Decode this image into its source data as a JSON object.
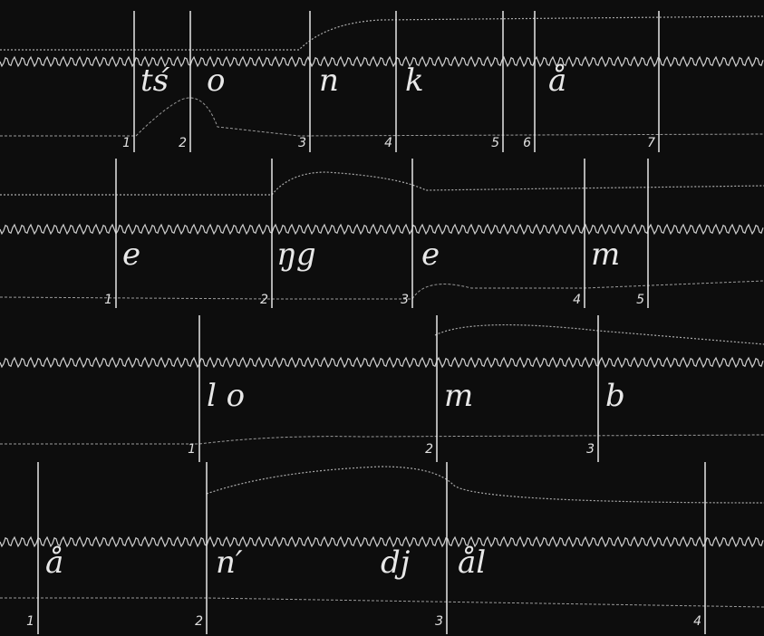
{
  "strips": [
    {
      "labels": [
        "tś",
        "o",
        "n",
        "k",
        "å"
      ],
      "numbers": [
        1,
        2,
        3,
        4,
        5,
        6,
        7
      ]
    },
    {
      "labels": [
        "e",
        "ŋg",
        "e",
        "m"
      ],
      "numbers": [
        1,
        2,
        3,
        4,
        5
      ]
    },
    {
      "labels": [
        "l o",
        "m",
        "b"
      ],
      "numbers": [
        1,
        2,
        3
      ]
    },
    {
      "labels": [
        "å",
        "n′",
        "dj",
        "ål"
      ],
      "numbers": [
        1,
        2,
        3,
        4
      ]
    }
  ]
}
